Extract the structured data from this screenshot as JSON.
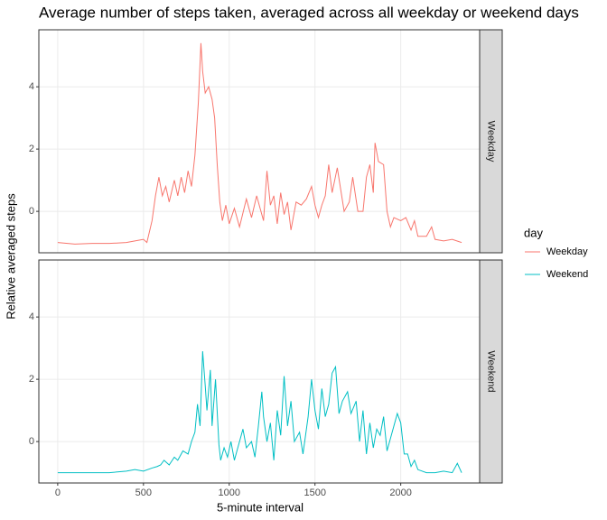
{
  "chart_data": {
    "type": "line",
    "title": "Average number of steps taken, averaged across all weekday or weekend days",
    "xlabel": "5-minute interval",
    "ylabel": "Relative averaged steps",
    "legend_title": "day",
    "legend": "right",
    "grid": true,
    "xlim": [
      -110,
      2460
    ],
    "ylim": [
      -1.33,
      5.83
    ],
    "xticks": [
      0,
      500,
      1000,
      1500,
      2000
    ],
    "yticks": [
      0,
      2,
      4
    ],
    "series": [
      {
        "name": "Weekday",
        "color": "#F8766D",
        "x": [
          0,
          100,
          200,
          300,
          400,
          450,
          500,
          520,
          550,
          570,
          590,
          610,
          630,
          650,
          680,
          700,
          720,
          740,
          760,
          780,
          800,
          820,
          835,
          845,
          860,
          880,
          900,
          915,
          930,
          945,
          960,
          980,
          1000,
          1030,
          1060,
          1100,
          1130,
          1160,
          1200,
          1220,
          1240,
          1260,
          1280,
          1300,
          1320,
          1340,
          1360,
          1390,
          1420,
          1450,
          1480,
          1500,
          1520,
          1540,
          1560,
          1580,
          1600,
          1630,
          1650,
          1670,
          1700,
          1720,
          1750,
          1780,
          1800,
          1820,
          1840,
          1850,
          1870,
          1900,
          1920,
          1940,
          1960,
          2000,
          2030,
          2060,
          2080,
          2100,
          2150,
          2180,
          2200,
          2250,
          2300,
          2355
        ],
        "values": [
          -1,
          -1.05,
          -1.03,
          -1.03,
          -1.0,
          -0.95,
          -0.9,
          -1.0,
          -0.3,
          0.5,
          1.1,
          0.5,
          0.8,
          0.3,
          1.0,
          0.5,
          1.1,
          0.6,
          1.3,
          0.8,
          1.8,
          3.5,
          5.4,
          4.5,
          3.8,
          4.0,
          3.6,
          3.0,
          1.5,
          0.3,
          -0.3,
          0.2,
          -0.4,
          0.1,
          -0.5,
          0.4,
          -0.2,
          0.5,
          -0.3,
          1.3,
          0.2,
          0.5,
          -0.4,
          0.6,
          -0.1,
          0.3,
          -0.6,
          0.3,
          0.2,
          0.4,
          0.8,
          0.2,
          -0.2,
          0.2,
          0.5,
          1.5,
          0.6,
          1.4,
          0.7,
          0.0,
          0.3,
          1.1,
          0.0,
          0.0,
          1.1,
          1.5,
          0.6,
          2.2,
          1.6,
          1.5,
          0.0,
          -0.5,
          -0.2,
          -0.3,
          -0.2,
          -0.6,
          -0.3,
          -0.8,
          -0.8,
          -0.5,
          -0.9,
          -0.95,
          -0.9,
          -1.0
        ]
      },
      {
        "name": "Weekend",
        "color": "#00BFC4",
        "x": [
          0,
          100,
          200,
          300,
          400,
          450,
          500,
          550,
          580,
          600,
          620,
          650,
          680,
          700,
          730,
          760,
          780,
          800,
          815,
          830,
          845,
          860,
          870,
          890,
          900,
          920,
          940,
          950,
          970,
          990,
          1010,
          1030,
          1050,
          1080,
          1100,
          1130,
          1150,
          1170,
          1190,
          1200,
          1220,
          1240,
          1260,
          1280,
          1300,
          1320,
          1340,
          1360,
          1380,
          1410,
          1430,
          1460,
          1480,
          1500,
          1520,
          1540,
          1560,
          1580,
          1600,
          1620,
          1640,
          1660,
          1690,
          1710,
          1740,
          1760,
          1780,
          1800,
          1820,
          1840,
          1860,
          1880,
          1900,
          1920,
          1950,
          1980,
          2000,
          2020,
          2040,
          2060,
          2080,
          2100,
          2150,
          2200,
          2250,
          2300,
          2330,
          2355
        ],
        "values": [
          -1,
          -1.0,
          -1.0,
          -1.0,
          -0.95,
          -0.9,
          -0.95,
          -0.85,
          -0.8,
          -0.75,
          -0.6,
          -0.75,
          -0.5,
          -0.6,
          -0.3,
          -0.4,
          0.0,
          0.3,
          1.2,
          0.5,
          2.9,
          1.8,
          1.0,
          2.3,
          0.5,
          2.0,
          -0.1,
          -0.6,
          -0.2,
          -0.5,
          0.0,
          -0.6,
          -0.2,
          0.4,
          -0.2,
          0.0,
          -0.5,
          0.5,
          1.6,
          0.8,
          0.0,
          0.6,
          -0.6,
          1.0,
          0.2,
          2.1,
          0.5,
          1.3,
          0.0,
          0.3,
          -0.4,
          0.8,
          2.0,
          1.0,
          0.4,
          1.7,
          0.8,
          1.2,
          2.2,
          2.4,
          0.9,
          1.3,
          1.6,
          0.9,
          1.3,
          0.0,
          1.0,
          -0.4,
          0.6,
          -0.2,
          0.4,
          0.2,
          0.8,
          -0.3,
          0.3,
          0.9,
          0.6,
          -0.4,
          -0.4,
          -0.8,
          -0.6,
          -0.9,
          -1.0,
          -1.0,
          -0.95,
          -1.0,
          -0.7,
          -1.0
        ]
      }
    ]
  }
}
